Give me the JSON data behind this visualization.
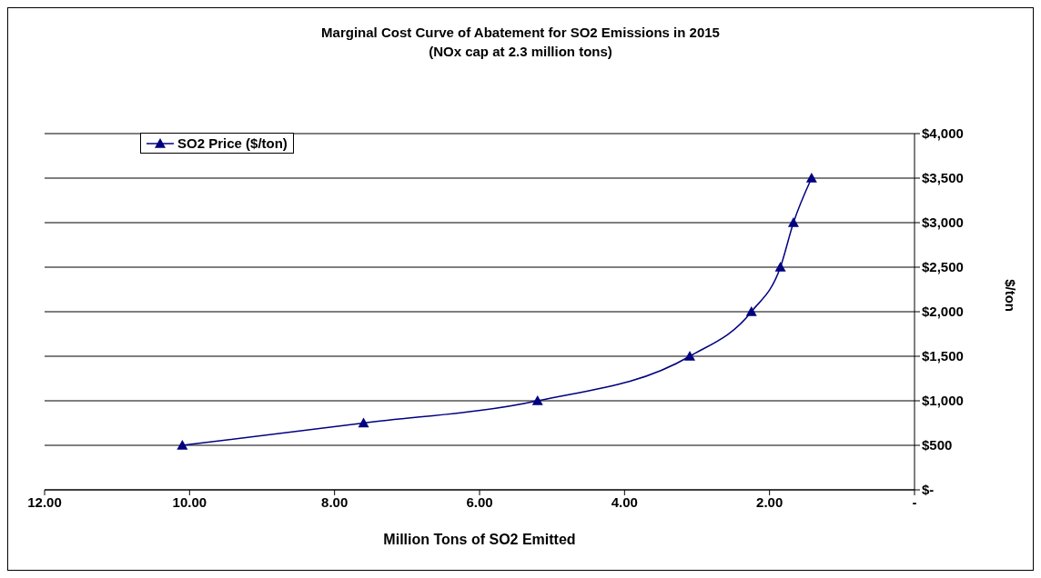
{
  "chart_data": {
    "type": "line",
    "title": "Marginal Cost Curve of Abatement for SO2 Emissions in 2015",
    "subtitle": "(NOx cap at 2.3 million tons)",
    "xlabel": "Million Tons of SO2 Emitted",
    "ylabel": "$/ton",
    "x": [
      10.1,
      7.6,
      5.2,
      3.1,
      2.25,
      1.85,
      1.67,
      1.42
    ],
    "series": [
      {
        "name": "SO2 Price ($/ton)",
        "color": "#000080",
        "values": [
          500,
          750,
          1000,
          1500,
          2000,
          2500,
          3000,
          3500
        ]
      }
    ],
    "xlim": [
      12,
      0
    ],
    "xticks": [
      {
        "value": 12,
        "label": "12.00"
      },
      {
        "value": 10,
        "label": "10.00"
      },
      {
        "value": 8,
        "label": "8.00"
      },
      {
        "value": 6,
        "label": "6.00"
      },
      {
        "value": 4,
        "label": "4.00"
      },
      {
        "value": 2,
        "label": "2.00"
      },
      {
        "value": 0,
        "label": "-"
      }
    ],
    "ylim": [
      0,
      4000
    ],
    "yticks": [
      {
        "value": 0,
        "label": "$-"
      },
      {
        "value": 500,
        "label": "$500"
      },
      {
        "value": 1000,
        "label": "$1,000"
      },
      {
        "value": 1500,
        "label": "$1,500"
      },
      {
        "value": 2000,
        "label": "$2,000"
      },
      {
        "value": 2500,
        "label": "$2,500"
      },
      {
        "value": 3000,
        "label": "$3,000"
      },
      {
        "value": 3500,
        "label": "$3,500"
      },
      {
        "value": 4000,
        "label": "$4,000"
      }
    ],
    "grid": "y",
    "legend": "top left",
    "marker": "triangle",
    "line_style": "solid"
  }
}
